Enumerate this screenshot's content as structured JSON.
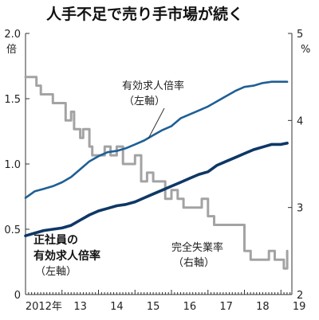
{
  "chart_data": {
    "type": "line",
    "title": "人手不足で売り手市場が続く",
    "left_axis": {
      "unit": "倍",
      "ticks": [
        "0",
        "0.5",
        "1.0",
        "1.5",
        "2.0"
      ],
      "ylim": [
        0,
        2.0
      ]
    },
    "right_axis": {
      "unit": "%",
      "ticks": [
        "2",
        "3",
        "4",
        "5"
      ],
      "ylim": [
        2,
        5
      ]
    },
    "x_axis": {
      "ticks": [
        "2012年",
        "13",
        "14",
        "15",
        "16",
        "17",
        "18",
        "19"
      ],
      "xlim": [
        2012,
        2019.3
      ]
    },
    "grid": false,
    "series": [
      {
        "name": "有効求人倍率",
        "axis": "left",
        "color": "#1f5f95",
        "x": [
          2012.0,
          2012.25,
          2012.5,
          2012.75,
          2013.0,
          2013.25,
          2013.5,
          2013.75,
          2014.0,
          2014.25,
          2014.5,
          2014.75,
          2015.0,
          2015.25,
          2015.5,
          2015.75,
          2016.0,
          2016.25,
          2016.5,
          2016.75,
          2017.0,
          2017.25,
          2017.5,
          2017.75,
          2018.0,
          2018.25,
          2018.5,
          2018.75,
          2019.0,
          2019.17
        ],
        "y": [
          0.74,
          0.79,
          0.81,
          0.83,
          0.86,
          0.9,
          0.96,
          1.02,
          1.06,
          1.09,
          1.1,
          1.12,
          1.15,
          1.18,
          1.22,
          1.26,
          1.29,
          1.35,
          1.38,
          1.41,
          1.44,
          1.48,
          1.52,
          1.56,
          1.59,
          1.6,
          1.62,
          1.63,
          1.63,
          1.63
        ]
      },
      {
        "name": "正社員の有効求人倍率",
        "axis": "left",
        "color": "#0e3766",
        "x": [
          2012.0,
          2012.25,
          2012.5,
          2012.75,
          2013.0,
          2013.25,
          2013.5,
          2013.75,
          2014.0,
          2014.25,
          2014.5,
          2014.75,
          2015.0,
          2015.25,
          2015.5,
          2015.75,
          2016.0,
          2016.25,
          2016.5,
          2016.75,
          2017.0,
          2017.25,
          2017.5,
          2017.75,
          2018.0,
          2018.25,
          2018.5,
          2018.75,
          2019.0,
          2019.17
        ],
        "y": [
          0.45,
          0.47,
          0.49,
          0.5,
          0.51,
          0.53,
          0.57,
          0.61,
          0.64,
          0.66,
          0.68,
          0.69,
          0.71,
          0.74,
          0.77,
          0.8,
          0.83,
          0.86,
          0.89,
          0.92,
          0.94,
          0.99,
          1.02,
          1.05,
          1.08,
          1.11,
          1.13,
          1.15,
          1.15,
          1.16
        ]
      },
      {
        "name": "完全失業率",
        "axis": "right",
        "color": "#a3a3a3",
        "x": [
          2012.0,
          2012.15,
          2012.3,
          2012.42,
          2012.58,
          2012.75,
          2012.9,
          2013.0,
          2013.1,
          2013.25,
          2013.33,
          2013.5,
          2013.58,
          2013.75,
          2013.83,
          2014.0,
          2014.17,
          2014.33,
          2014.5,
          2014.67,
          2014.83,
          2015.0,
          2015.17,
          2015.33,
          2015.5,
          2015.67,
          2015.83,
          2016.0,
          2016.17,
          2016.33,
          2016.5,
          2016.67,
          2016.83,
          2017.0,
          2017.17,
          2017.33,
          2017.5,
          2017.67,
          2017.83,
          2018.0,
          2018.17,
          2018.33,
          2018.5,
          2018.67,
          2018.83,
          2019.0,
          2019.08,
          2019.17
        ],
        "y": [
          4.5,
          4.5,
          4.4,
          4.3,
          4.3,
          4.2,
          4.2,
          4.2,
          4.0,
          4.1,
          3.9,
          3.8,
          3.9,
          3.7,
          3.6,
          3.6,
          3.7,
          3.6,
          3.7,
          3.5,
          3.5,
          3.6,
          3.3,
          3.4,
          3.3,
          3.3,
          3.1,
          3.2,
          3.1,
          3.0,
          3.0,
          3.0,
          3.1,
          2.9,
          2.8,
          2.8,
          2.8,
          2.8,
          2.8,
          2.5,
          2.4,
          2.4,
          2.4,
          2.5,
          2.4,
          2.4,
          2.3,
          2.5
        ]
      }
    ],
    "annotations": [
      {
        "series": "有効求人倍率",
        "lines": [
          "有効求人倍率",
          "（左軸）"
        ]
      },
      {
        "series": "正社員の有効求人倍率",
        "lines": [
          "正社員の",
          "有効求人倍率",
          "（左軸）"
        ]
      },
      {
        "series": "完全失業率",
        "lines": [
          "完全失業率",
          "（右軸）"
        ]
      }
    ]
  }
}
